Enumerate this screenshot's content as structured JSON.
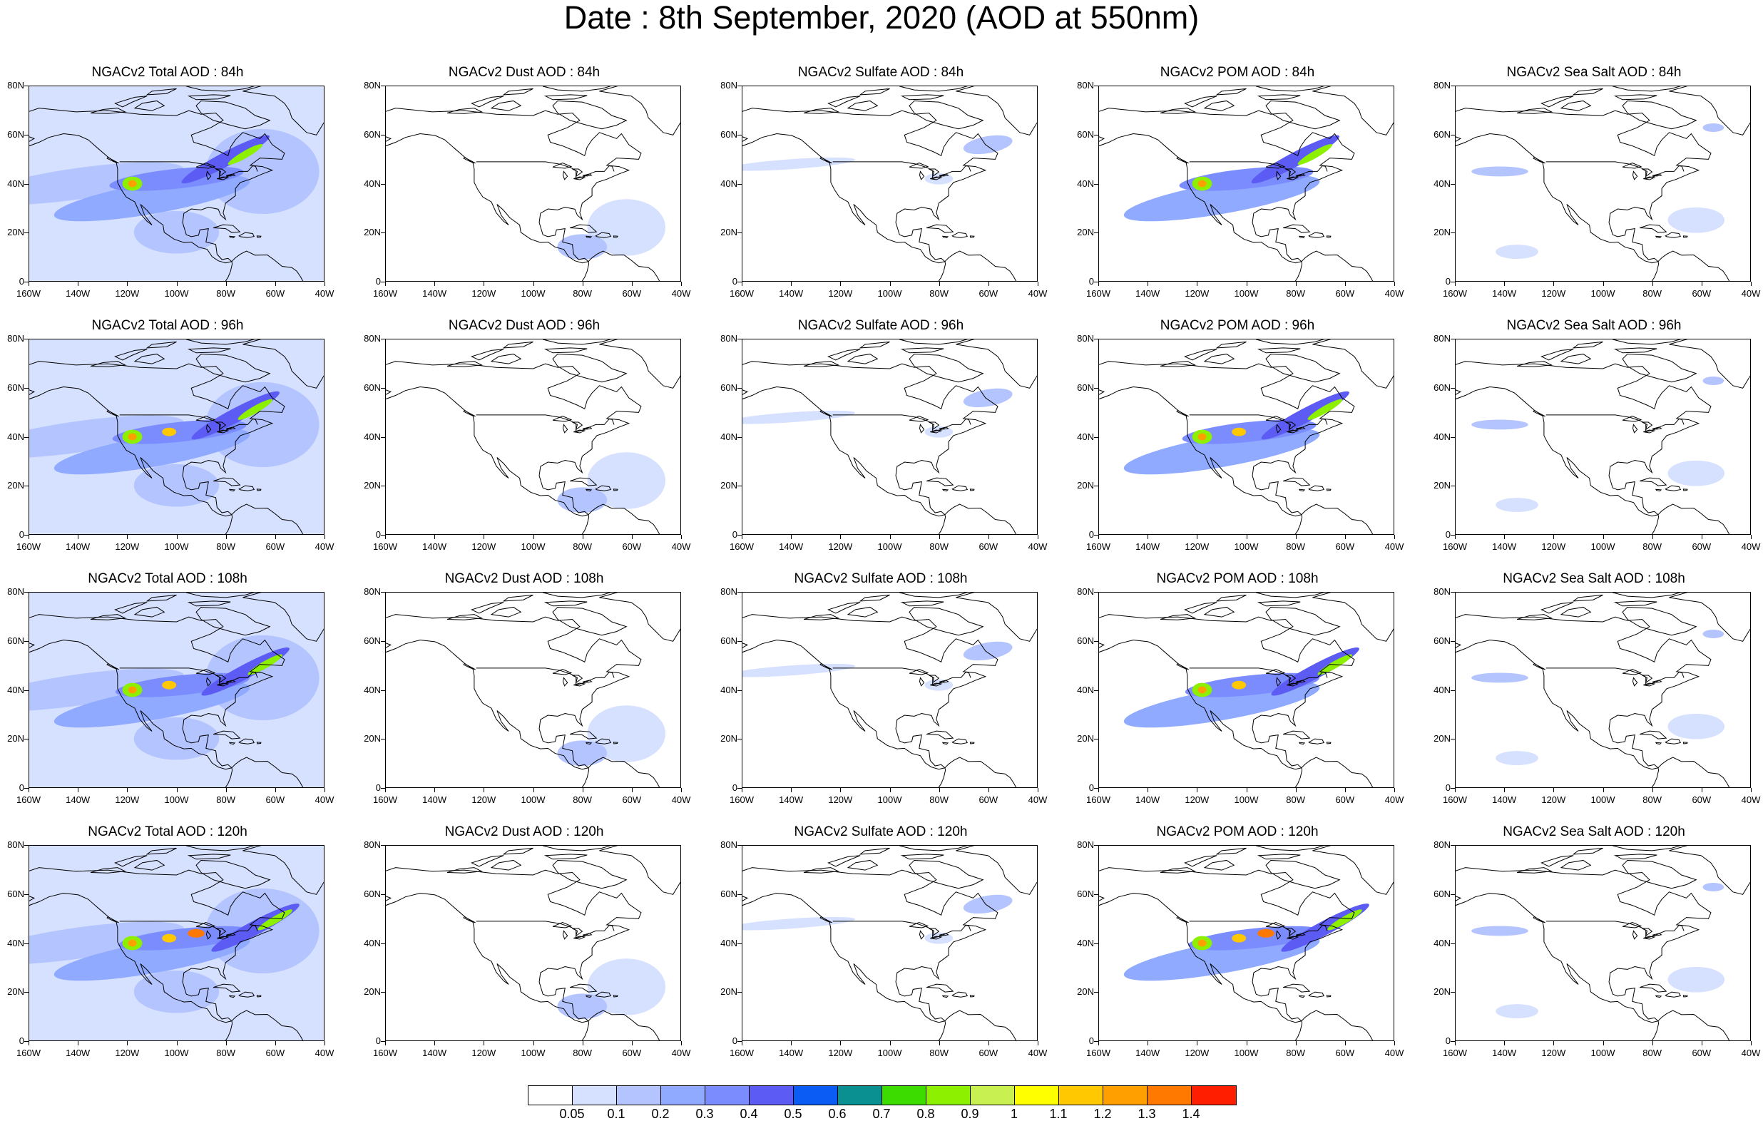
{
  "title": "Date : 8th September, 2020 (AOD at 550nm)",
  "axes": {
    "lat_labels": [
      "0",
      "20N",
      "40N",
      "60N",
      "80N"
    ],
    "lat_values": [
      0,
      20,
      40,
      60,
      80
    ],
    "lon_labels": [
      "160W",
      "140W",
      "120W",
      "100W",
      "80W",
      "60W",
      "40W"
    ],
    "lon_values": [
      -160,
      -140,
      -120,
      -100,
      -80,
      -60,
      -40
    ],
    "lat_range": [
      0,
      80
    ],
    "lon_range": [
      -160,
      -40
    ]
  },
  "panels": [
    {
      "title": "NGACv2 Total AOD : 84h",
      "species": "total",
      "lead_hours": 84
    },
    {
      "title": "NGACv2 Dust AOD : 84h",
      "species": "dust",
      "lead_hours": 84
    },
    {
      "title": "NGACv2 Sulfate AOD : 84h",
      "species": "sulfate",
      "lead_hours": 84
    },
    {
      "title": "NGACv2 POM AOD : 84h",
      "species": "pom",
      "lead_hours": 84
    },
    {
      "title": "NGACv2 Sea Salt AOD : 84h",
      "species": "seasalt",
      "lead_hours": 84
    },
    {
      "title": "NGACv2 Total AOD : 96h",
      "species": "total",
      "lead_hours": 96
    },
    {
      "title": "NGACv2 Dust AOD : 96h",
      "species": "dust",
      "lead_hours": 96
    },
    {
      "title": "NGACv2 Sulfate AOD : 96h",
      "species": "sulfate",
      "lead_hours": 96
    },
    {
      "title": "NGACv2 POM AOD : 96h",
      "species": "pom",
      "lead_hours": 96
    },
    {
      "title": "NGACv2 Sea Salt AOD : 96h",
      "species": "seasalt",
      "lead_hours": 96
    },
    {
      "title": "NGACv2 Total AOD : 108h",
      "species": "total",
      "lead_hours": 108
    },
    {
      "title": "NGACv2 Dust AOD : 108h",
      "species": "dust",
      "lead_hours": 108
    },
    {
      "title": "NGACv2 Sulfate AOD : 108h",
      "species": "sulfate",
      "lead_hours": 108
    },
    {
      "title": "NGACv2 POM AOD : 108h",
      "species": "pom",
      "lead_hours": 108
    },
    {
      "title": "NGACv2 Sea Salt AOD : 108h",
      "species": "seasalt",
      "lead_hours": 108
    },
    {
      "title": "NGACv2 Total AOD : 120h",
      "species": "total",
      "lead_hours": 120
    },
    {
      "title": "NGACv2 Dust AOD : 120h",
      "species": "dust",
      "lead_hours": 120
    },
    {
      "title": "NGACv2 Sulfate AOD : 120h",
      "species": "sulfate",
      "lead_hours": 120
    },
    {
      "title": "NGACv2 POM AOD : 120h",
      "species": "pom",
      "lead_hours": 120
    },
    {
      "title": "NGACv2 Sea Salt  AOD : 120h",
      "species": "seasalt",
      "lead_hours": 120
    }
  ],
  "colorbar": {
    "labels": [
      "0.05",
      "0.1",
      "0.2",
      "0.3",
      "0.4",
      "0.5",
      "0.6",
      "0.7",
      "0.8",
      "0.9",
      "1",
      "1.1",
      "1.2",
      "1.3",
      "1.4"
    ],
    "colors": [
      "#ffffff",
      "#d6e0ff",
      "#b4c4ff",
      "#8faaff",
      "#7b8cff",
      "#5c5cf5",
      "#0a5cf5",
      "#0a9090",
      "#3cdc00",
      "#8cf000",
      "#c8f050",
      "#ffff00",
      "#ffc800",
      "#ffa000",
      "#ff7800",
      "#ff1e00"
    ]
  }
}
